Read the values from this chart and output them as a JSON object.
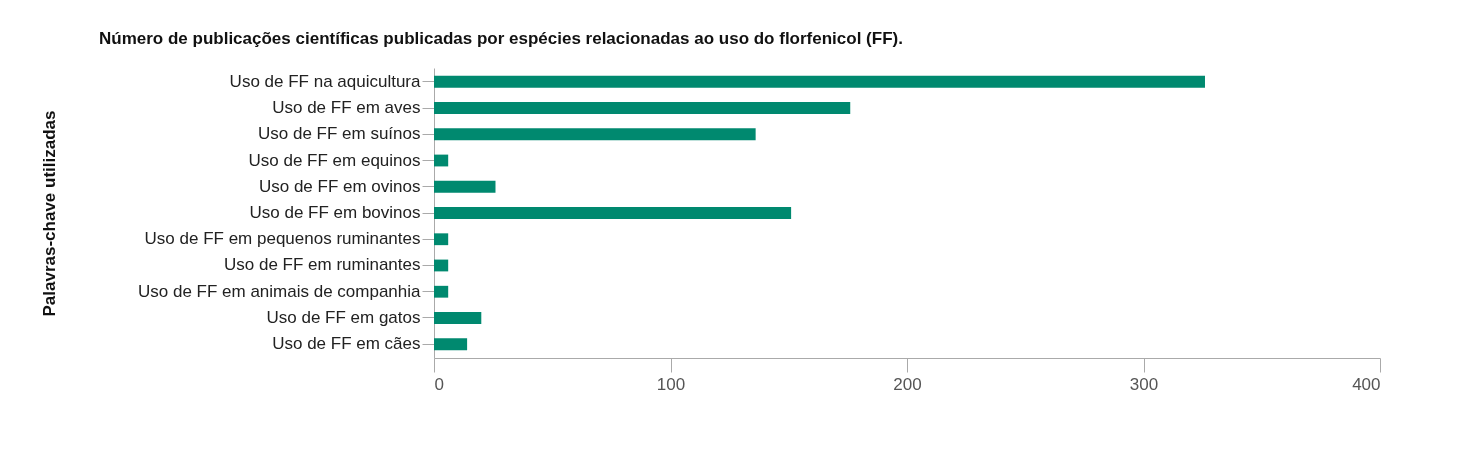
{
  "chart_data": {
    "type": "bar",
    "orientation": "horizontal",
    "title": "Número de publicações científicas publicadas por espécies relacionadas ao uso do florfenicol (FF).",
    "ylabel": "Palavras-chave utilizadas",
    "categories": [
      "Uso de FF na aquicultura",
      "Uso de FF em aves",
      "Uso de FF em suínos",
      "Uso de FF em equinos",
      "Uso de FF em ovinos",
      "Uso de FF em bovinos",
      "Uso de FF em pequenos ruminantes",
      "Uso de FF em ruminantes",
      "Uso de FF em animais de companhia",
      "Uso de FF em gatos",
      "Uso de FF em cães"
    ],
    "values": [
      326,
      176,
      136,
      6,
      26,
      151,
      6,
      6,
      6,
      20,
      14
    ],
    "color": "#00896f",
    "xlim": [
      0,
      400
    ],
    "xticks": [
      0,
      100,
      200,
      300,
      400
    ],
    "grid": false
  }
}
